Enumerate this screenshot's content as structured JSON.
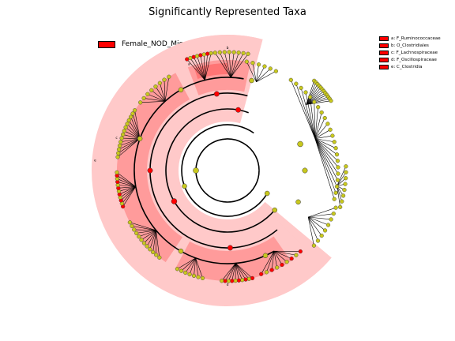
{
  "title": "Significantly Represented Taxa",
  "group_legend": {
    "label": "Female_NOD_Mice",
    "color": "#ff0000"
  },
  "taxa_legend": [
    {
      "key": "a",
      "text": "a: F_Ruminococcaceae"
    },
    {
      "key": "b",
      "text": "b: O_Clostridiales"
    },
    {
      "key": "c",
      "text": "c: F_Lachnospiraceae"
    },
    {
      "key": "d",
      "text": "d: F_Oscillospiraceae"
    },
    {
      "key": "e",
      "text": "e: C_Clostridia"
    }
  ],
  "colors": {
    "enriched": "#ff0000",
    "neutral": "#c8c81e",
    "highlight_light": "#ffc9c9",
    "highlight_mid": "#ff9b9b",
    "highlight_strong": "#ff7575"
  }
}
